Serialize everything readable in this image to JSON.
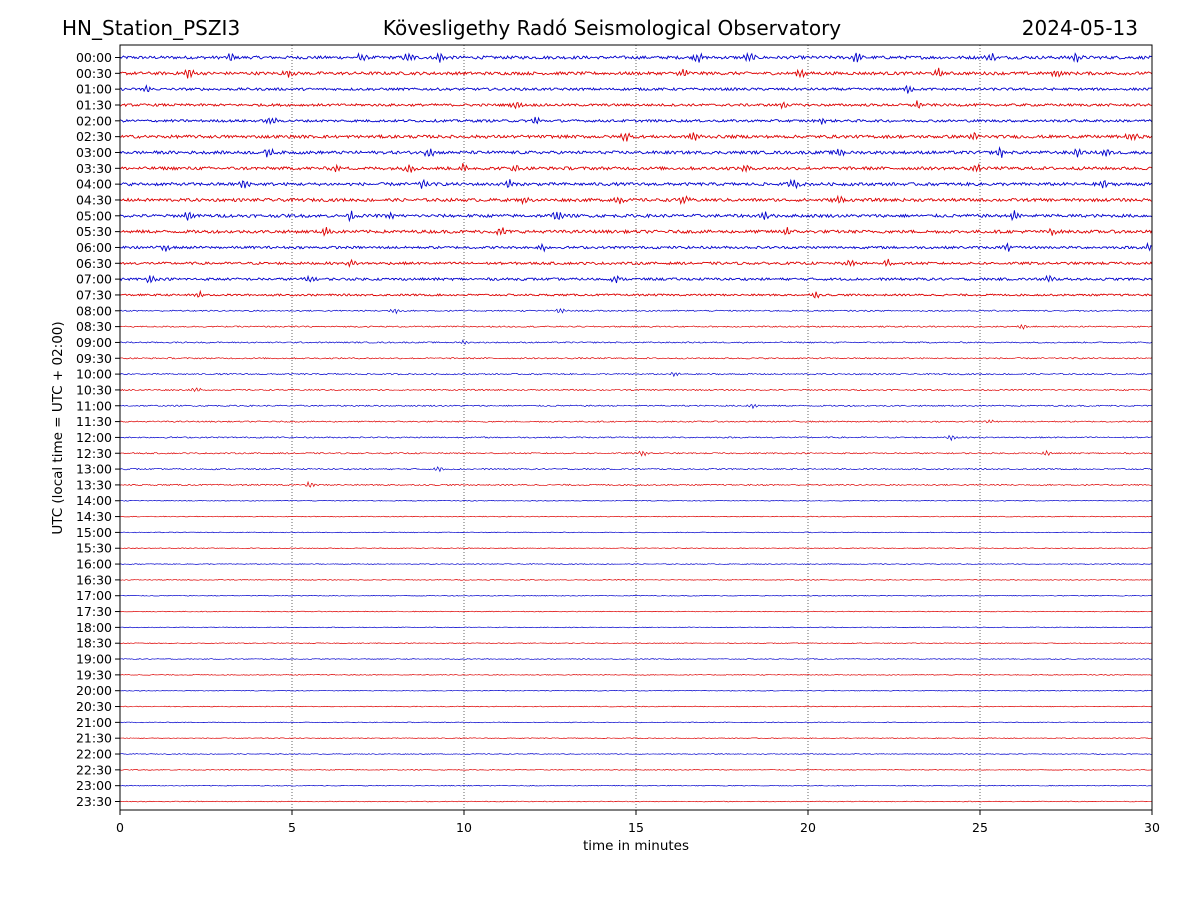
{
  "header": {
    "station": "HN_Station_PSZI3",
    "observatory": "Kövesligethy Radó Seismological Observatory",
    "date": "2024-05-13"
  },
  "chart_data": {
    "type": "line",
    "chart_kind": "helicorder",
    "xlabel": "time in minutes",
    "ylabel": "UTC (local time = UTC + 02:00)",
    "xlim": [
      0,
      30
    ],
    "x_ticks": [
      0,
      5,
      10,
      15,
      20,
      25,
      30
    ],
    "x_tick_labels": [
      "0",
      "5",
      "10",
      "15",
      "20",
      "25",
      "30"
    ],
    "vertical_grid": true,
    "grid_style": "dotted",
    "trace_colors": [
      "#0000cc",
      "#dd0000"
    ],
    "row_labels": [
      "00:00",
      "00:30",
      "01:00",
      "01:30",
      "02:00",
      "02:30",
      "03:00",
      "03:30",
      "04:00",
      "04:30",
      "05:00",
      "05:30",
      "06:00",
      "06:30",
      "07:00",
      "07:30",
      "08:00",
      "08:30",
      "09:00",
      "09:30",
      "10:00",
      "10:30",
      "11:00",
      "11:30",
      "12:00",
      "12:30",
      "13:00",
      "13:30",
      "14:00",
      "14:30",
      "15:00",
      "15:30",
      "16:00",
      "16:30",
      "17:00",
      "17:30",
      "18:00",
      "18:30",
      "19:00",
      "19:30",
      "20:00",
      "20:30",
      "21:00",
      "21:30",
      "22:00",
      "22:30",
      "23:00",
      "23:30"
    ],
    "activity": [
      5,
      5,
      4,
      4,
      4,
      5,
      5,
      5,
      5,
      5,
      5,
      5,
      4,
      4,
      4,
      3,
      2,
      2,
      2,
      2,
      2,
      2,
      2,
      2,
      2,
      2,
      2,
      2,
      1,
      1,
      1,
      1,
      1,
      1,
      1,
      1,
      1,
      1,
      1,
      1,
      1,
      1,
      1,
      1,
      1,
      1,
      1,
      1
    ],
    "bursts": [
      [
        3.2,
        7.0,
        8.4,
        9.3,
        16.8,
        18.3,
        21.4,
        25.3,
        27.8
      ],
      [
        2.0,
        4.9,
        16.4,
        19.8,
        23.8,
        27.2
      ],
      [
        0.8,
        22.9
      ],
      [
        11.5,
        19.3,
        23.2
      ],
      [
        4.4,
        12.1,
        20.4
      ],
      [
        14.7,
        16.7,
        24.8,
        29.4
      ],
      [
        4.3,
        9.0,
        20.9,
        25.6,
        27.8,
        28.7
      ],
      [
        6.3,
        8.4,
        10.0,
        11.5,
        18.2,
        24.9
      ],
      [
        3.6,
        8.8,
        11.3,
        19.6,
        28.6
      ],
      [
        11.8,
        14.5,
        16.4,
        20.9
      ],
      [
        2.0,
        6.7,
        7.9,
        12.7,
        18.7,
        26.0
      ],
      [
        6.0,
        11.1,
        19.4,
        27.1
      ],
      [
        1.3,
        12.3,
        25.8,
        29.9
      ],
      [
        6.7,
        21.2,
        22.3
      ],
      [
        0.9,
        5.5,
        14.4,
        27.0
      ],
      [
        2.3,
        20.2
      ],
      [
        8.0,
        12.8
      ],
      [
        26.2
      ],
      [
        10.0
      ],
      [],
      [
        16.1
      ],
      [
        2.2
      ],
      [
        18.4
      ],
      [
        25.3
      ],
      [
        24.2
      ],
      [
        15.2,
        26.9
      ],
      [
        9.3
      ],
      [
        5.5
      ],
      [],
      [],
      [],
      [],
      [],
      [],
      [],
      [],
      [],
      [],
      [],
      [],
      [],
      [],
      [],
      [],
      [],
      [],
      [],
      []
    ]
  }
}
